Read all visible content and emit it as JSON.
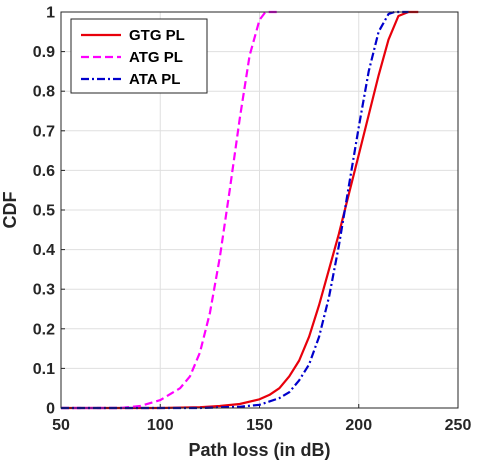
{
  "chart_data": {
    "type": "line",
    "xlabel": "Path loss (in dB)",
    "ylabel": "CDF",
    "xlim": [
      50,
      250
    ],
    "ylim": [
      0,
      1
    ],
    "xticks": [
      50,
      100,
      150,
      200,
      250
    ],
    "yticks": [
      0,
      0.1,
      0.2,
      0.3,
      0.4,
      0.5,
      0.6,
      0.7,
      0.8,
      0.9,
      1
    ],
    "grid": true,
    "legend_position": "top-left",
    "series": [
      {
        "name": "GTG PL",
        "color": "#e8000b",
        "style": "solid",
        "x": [
          50,
          100,
          120,
          130,
          140,
          150,
          155,
          160,
          165,
          170,
          175,
          180,
          185,
          190,
          195,
          200,
          205,
          210,
          215,
          220,
          225,
          230
        ],
        "y": [
          0,
          0,
          0.002,
          0.005,
          0.01,
          0.022,
          0.033,
          0.05,
          0.08,
          0.12,
          0.18,
          0.26,
          0.35,
          0.44,
          0.54,
          0.64,
          0.74,
          0.84,
          0.93,
          0.99,
          1,
          1
        ]
      },
      {
        "name": "ATG PL",
        "color": "#ff00ff",
        "style": "dashed",
        "x": [
          50,
          80,
          90,
          100,
          110,
          115,
          120,
          125,
          130,
          135,
          140,
          145,
          150,
          153,
          160
        ],
        "y": [
          0,
          0,
          0.005,
          0.02,
          0.05,
          0.08,
          0.14,
          0.24,
          0.38,
          0.55,
          0.73,
          0.89,
          0.98,
          1,
          1
        ]
      },
      {
        "name": "ATA PL",
        "color": "#0000cc",
        "style": "dashdot",
        "x": [
          50,
          120,
          140,
          150,
          160,
          165,
          170,
          175,
          180,
          185,
          190,
          195,
          200,
          205,
          210,
          215,
          218,
          225
        ],
        "y": [
          0,
          0,
          0.003,
          0.008,
          0.025,
          0.04,
          0.07,
          0.11,
          0.18,
          0.28,
          0.41,
          0.56,
          0.71,
          0.85,
          0.95,
          0.995,
          1,
          1
        ]
      }
    ]
  }
}
